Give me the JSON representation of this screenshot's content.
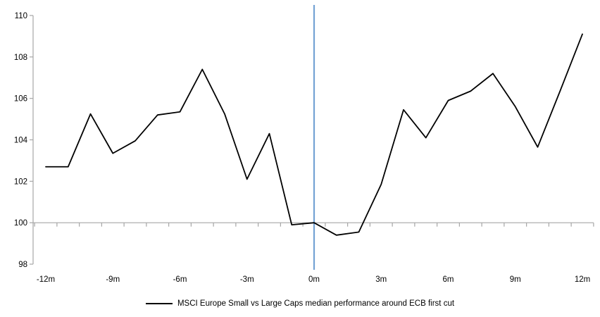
{
  "chart_data": {
    "type": "line",
    "title": "",
    "xlabel": "",
    "ylabel": "",
    "x": [
      -12,
      -11,
      -10,
      -9,
      -8,
      -7,
      -6,
      -5,
      -4,
      -3,
      -2,
      -1,
      0,
      1,
      2,
      3,
      4,
      5,
      6,
      7,
      8,
      9,
      10,
      11,
      12
    ],
    "series": [
      {
        "name": "MSCI Europe Small vs Large Caps median performance around ECB first cut",
        "color": "#000000",
        "values": [
          102.7,
          102.7,
          105.25,
          103.35,
          103.95,
          105.2,
          105.35,
          107.4,
          105.25,
          102.1,
          104.3,
          99.9,
          100.0,
          99.4,
          99.55,
          101.85,
          105.45,
          104.1,
          105.9,
          106.35,
          107.2,
          105.6,
          103.65,
          106.35,
          109.1
        ]
      }
    ],
    "ylim": [
      98,
      110
    ],
    "xlim": [
      -12.5,
      12.5
    ],
    "y_ticks": [
      98,
      100,
      102,
      104,
      106,
      108,
      110
    ],
    "x_tick_positions": [
      -12,
      -9,
      -6,
      -3,
      0,
      3,
      6,
      9,
      12
    ],
    "x_tick_labels": [
      "-12m",
      "-9m",
      "-6m",
      "-3m",
      "0m",
      "3m",
      "6m",
      "9m",
      "12m"
    ],
    "reference_lines": {
      "vertical_x": 0,
      "vertical_line_color": "#74a2d4",
      "x_axis_cross_value": 100
    },
    "axis_color": "#a6a6a6",
    "tick_label_color": "#000000",
    "grid": "none (category axis drawn at y=100 only)",
    "legend_position": "bottom-center"
  }
}
